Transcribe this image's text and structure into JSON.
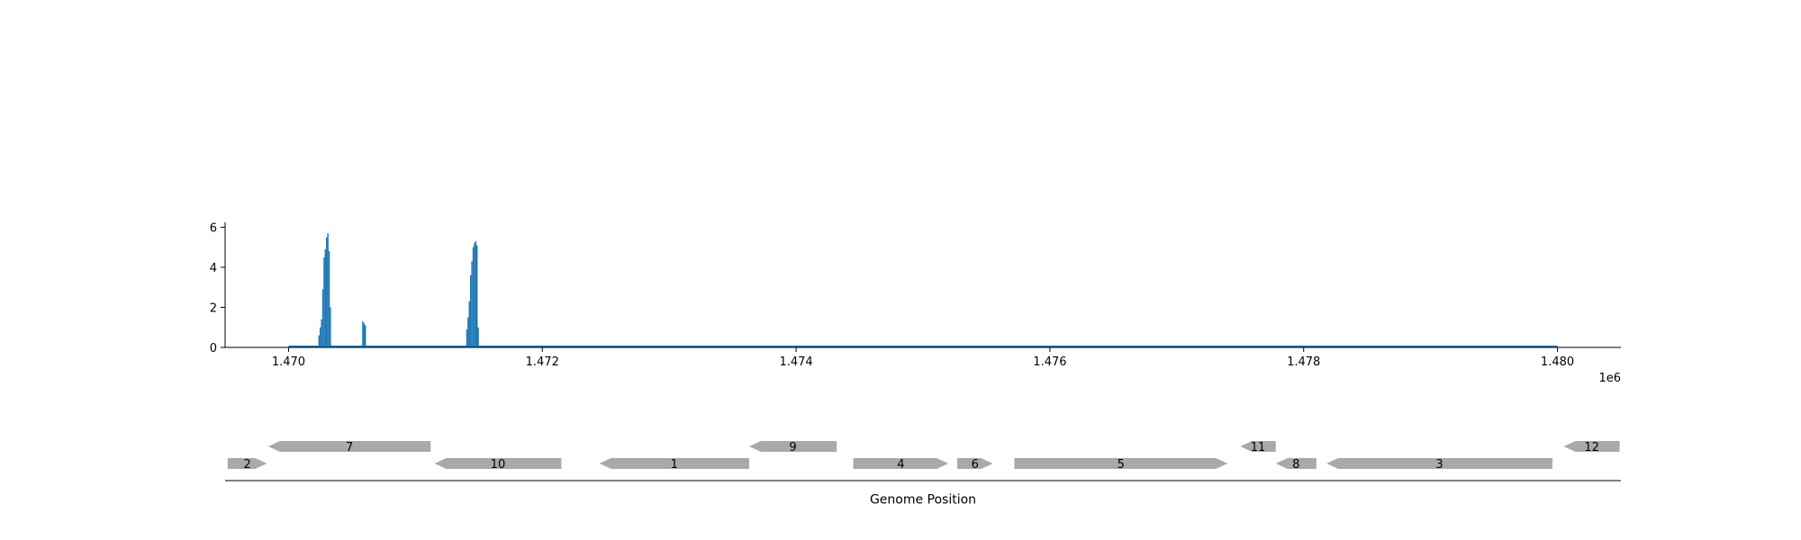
{
  "chart_data": [
    {
      "type": "area",
      "title": "",
      "xlabel": "",
      "ylabel": "",
      "x_offset_label": "1e6",
      "xlim": [
        1469500,
        1480500
      ],
      "ylim": [
        0,
        6.2
      ],
      "xticks": [
        1470000,
        1472000,
        1474000,
        1476000,
        1478000,
        1480000
      ],
      "xtick_labels": [
        "1.470",
        "1.472",
        "1.474",
        "1.476",
        "1.478",
        "1.480"
      ],
      "yticks": [
        0,
        2,
        4,
        6
      ],
      "ytick_labels": [
        "0",
        "2",
        "4",
        "6"
      ],
      "grid": false,
      "color": "#1f77b4",
      "baseline_range": [
        1470000,
        1480000
      ],
      "peaks": [
        {
          "x": [
            1470235,
            1470245,
            1470255,
            1470265,
            1470275,
            1470285,
            1470295,
            1470305,
            1470315,
            1470325
          ],
          "y": [
            0.6,
            1.0,
            1.4,
            2.9,
            4.5,
            4.9,
            5.5,
            5.7,
            4.8,
            2.0
          ]
        },
        {
          "x": [
            1470580,
            1470590,
            1470600
          ],
          "y": [
            1.3,
            1.2,
            1.1
          ]
        },
        {
          "x": [
            1471400,
            1471410,
            1471420,
            1471430,
            1471440,
            1471450,
            1471460,
            1471470,
            1471480,
            1471490
          ],
          "y": [
            0.9,
            1.5,
            2.3,
            3.6,
            4.3,
            5.0,
            5.2,
            5.3,
            5.1,
            1.0
          ]
        }
      ]
    },
    {
      "type": "gene-track",
      "xlabel": "Genome Position",
      "color": "#a9a9a9",
      "genes": [
        {
          "label": "2",
          "start": 1469520,
          "end": 1469830,
          "strand": "+",
          "row": 0
        },
        {
          "label": "7",
          "start": 1469840,
          "end": 1471120,
          "strand": "-",
          "row": 1
        },
        {
          "label": "10",
          "start": 1471150,
          "end": 1472150,
          "strand": "-",
          "row": 0
        },
        {
          "label": "1",
          "start": 1472450,
          "end": 1473630,
          "strand": "-",
          "row": 0
        },
        {
          "label": "9",
          "start": 1473630,
          "end": 1474320,
          "strand": "-",
          "row": 1
        },
        {
          "label": "4",
          "start": 1474450,
          "end": 1475200,
          "strand": "+",
          "row": 0
        },
        {
          "label": "6",
          "start": 1475270,
          "end": 1475550,
          "strand": "+",
          "row": 0
        },
        {
          "label": "5",
          "start": 1475720,
          "end": 1477400,
          "strand": "+",
          "row": 0
        },
        {
          "label": "11",
          "start": 1477500,
          "end": 1477780,
          "strand": "-",
          "row": 1
        },
        {
          "label": "8",
          "start": 1477780,
          "end": 1478100,
          "strand": "-",
          "row": 0
        },
        {
          "label": "3",
          "start": 1478180,
          "end": 1479960,
          "strand": "-",
          "row": 0
        },
        {
          "label": "12",
          "start": 1480050,
          "end": 1480490,
          "strand": "-",
          "row": 1
        }
      ]
    }
  ]
}
